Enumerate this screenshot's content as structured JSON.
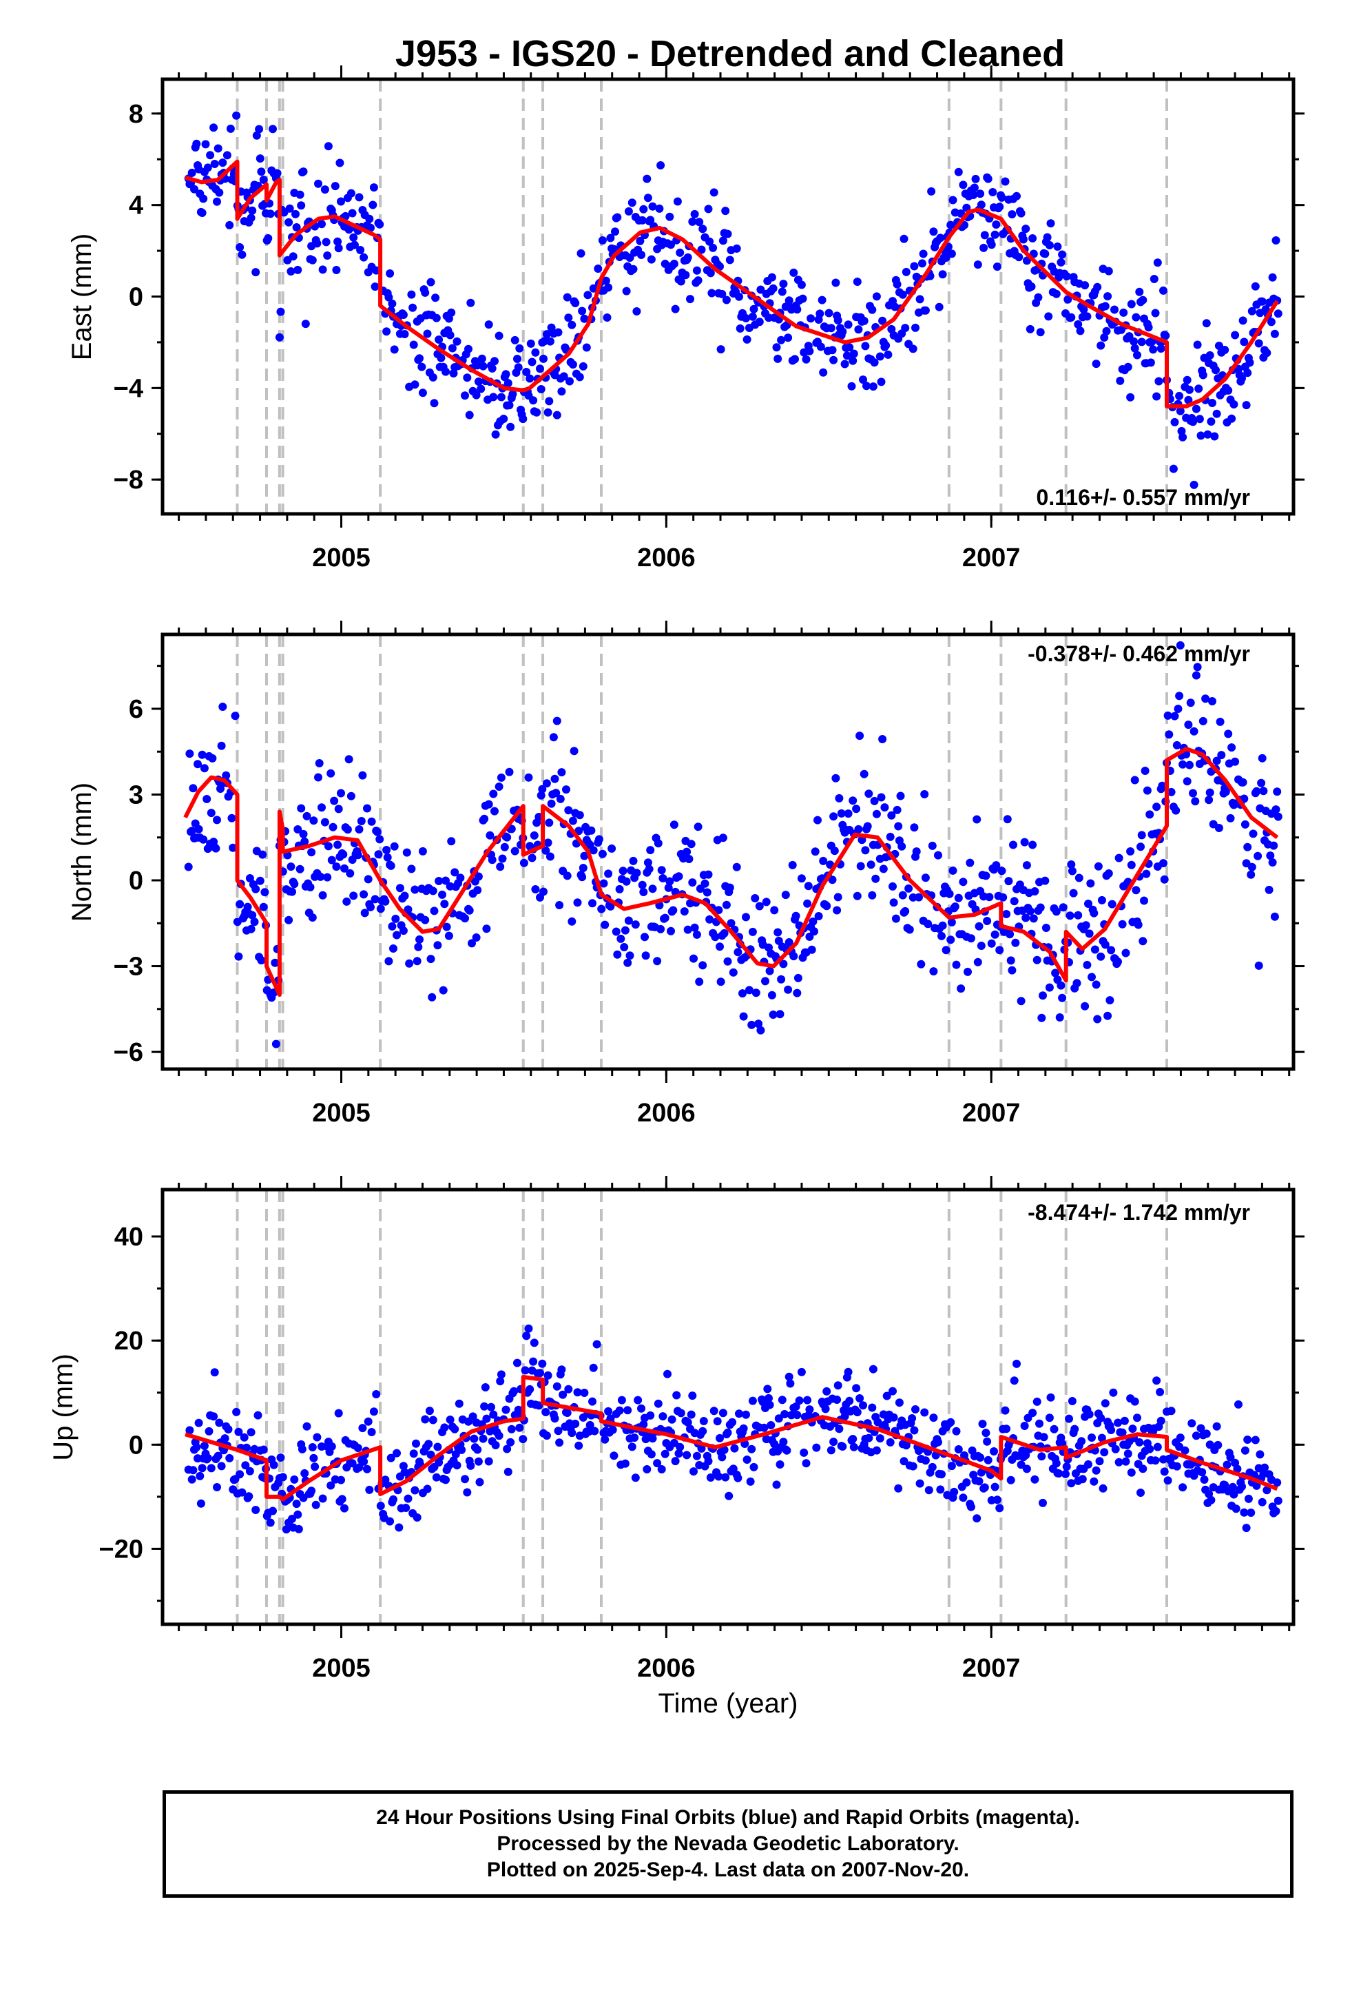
{
  "title": "J953 - IGS20 - Detrended and Cleaned",
  "xlabel": "Time (year)",
  "footer": {
    "line1": "24 Hour Positions Using Final Orbits (blue) and Rapid Orbits (magenta).",
    "line2": "Processed by the Nevada Geodetic Laboratory.",
    "line3": "Plotted on 2025-Sep-4. Last data on 2007-Nov-20."
  },
  "colors": {
    "points": "#0000ff",
    "model": "#ff0000",
    "events": "#c0c0c0",
    "frame": "#000000"
  },
  "chart_data": [
    {
      "type": "scatter",
      "ylabel": "East (mm)",
      "rate_text": "0.116+/- 0.557 mm/yr",
      "xlim": [
        2004.45,
        2007.93
      ],
      "ylim": [
        -9.5,
        9.5
      ],
      "xticks": [
        2005,
        2006,
        2007
      ],
      "yticks": [
        -8,
        -4,
        0,
        4,
        8
      ],
      "event_lines": [
        2004.68,
        2004.77,
        2004.81,
        2004.82,
        2005.12,
        2005.56,
        2005.62,
        2005.8,
        2006.87,
        2007.03,
        2007.23,
        2007.54
      ],
      "model": {
        "x": [
          2004.52,
          2004.57,
          2004.62,
          2004.68,
          2004.68,
          2004.72,
          2004.77,
          2004.77,
          2004.8,
          2004.81,
          2004.81,
          2004.86,
          2004.93,
          2004.98,
          2005.04,
          2005.1,
          2005.12,
          2005.12,
          2005.2,
          2005.3,
          2005.4,
          2005.5,
          2005.56,
          2005.58,
          2005.62,
          2005.7,
          2005.76,
          2005.8,
          2005.84,
          2005.92,
          2005.98,
          2006.05,
          2006.15,
          2006.25,
          2006.4,
          2006.55,
          2006.62,
          2006.7,
          2006.8,
          2006.87,
          2006.93,
          2006.96,
          2007.03,
          2007.1,
          2007.23,
          2007.3,
          2007.4,
          2007.54,
          2007.54,
          2007.6,
          2007.65,
          2007.72,
          2007.8,
          2007.88
        ],
        "y": [
          5.2,
          5.0,
          5.1,
          5.9,
          3.4,
          4.3,
          4.9,
          4.2,
          5.0,
          5.1,
          1.8,
          2.7,
          3.4,
          3.5,
          3.1,
          2.7,
          2.5,
          -0.4,
          -1.3,
          -2.3,
          -3.2,
          -4.0,
          -4.1,
          -4.0,
          -3.5,
          -2.5,
          -1.2,
          0.8,
          1.8,
          2.8,
          3.0,
          2.5,
          1.2,
          0.2,
          -1.3,
          -2.0,
          -1.8,
          -1.0,
          1.0,
          2.6,
          3.7,
          3.8,
          3.4,
          2.0,
          0.2,
          -0.4,
          -1.2,
          -2.0,
          -4.8,
          -4.8,
          -4.5,
          -3.6,
          -2.0,
          -0.2
        ]
      },
      "scatter_noise": 1.2
    },
    {
      "type": "scatter",
      "ylabel": "North (mm)",
      "rate_text": "-0.378+/- 0.462 mm/yr",
      "xlim": [
        2004.45,
        2007.93
      ],
      "ylim": [
        -6.6,
        8.6
      ],
      "xticks": [
        2005,
        2006,
        2007
      ],
      "yticks": [
        -6,
        -3,
        0,
        3,
        6
      ],
      "event_lines": [
        2004.68,
        2004.77,
        2004.81,
        2004.82,
        2005.12,
        2005.56,
        2005.62,
        2005.8,
        2006.87,
        2007.03,
        2007.23,
        2007.54
      ],
      "model": {
        "x": [
          2004.52,
          2004.56,
          2004.6,
          2004.64,
          2004.68,
          2004.68,
          2004.72,
          2004.77,
          2004.77,
          2004.81,
          2004.81,
          2004.82,
          2004.82,
          2004.9,
          2004.98,
          2005.05,
          2005.12,
          2005.18,
          2005.25,
          2005.3,
          2005.35,
          2005.45,
          2005.56,
          2005.56,
          2005.6,
          2005.62,
          2005.62,
          2005.7,
          2005.76,
          2005.8,
          2005.87,
          2005.95,
          2006.05,
          2006.12,
          2006.2,
          2006.28,
          2006.33,
          2006.4,
          2006.48,
          2006.58,
          2006.65,
          2006.75,
          2006.87,
          2006.95,
          2007.03,
          2007.03,
          2007.1,
          2007.18,
          2007.23,
          2007.23,
          2007.28,
          2007.35,
          2007.45,
          2007.54,
          2007.54,
          2007.6,
          2007.65,
          2007.72,
          2007.8,
          2007.88
        ],
        "y": [
          2.2,
          3.1,
          3.6,
          3.5,
          3.0,
          0.0,
          -0.6,
          -1.5,
          -3.0,
          -4.0,
          2.4,
          1.8,
          1.0,
          1.2,
          1.5,
          1.4,
          0.0,
          -1.0,
          -1.8,
          -1.7,
          -0.8,
          1.0,
          2.6,
          0.9,
          1.1,
          1.2,
          2.6,
          1.9,
          1.0,
          -0.5,
          -1.0,
          -0.8,
          -0.5,
          -0.8,
          -1.8,
          -2.9,
          -3.0,
          -2.2,
          -0.2,
          1.6,
          1.5,
          0.0,
          -1.3,
          -1.2,
          -0.8,
          -1.6,
          -1.8,
          -2.5,
          -3.5,
          -1.8,
          -2.4,
          -1.7,
          0.2,
          1.9,
          4.2,
          4.6,
          4.4,
          3.5,
          2.2,
          1.5
        ]
      },
      "scatter_noise": 1.3
    },
    {
      "type": "scatter",
      "ylabel": "Up (mm)",
      "rate_text": "-8.474+/- 1.742 mm/yr",
      "xlim": [
        2004.45,
        2007.93
      ],
      "ylim": [
        -34.5,
        49
      ],
      "xticks": [
        2005,
        2006,
        2007
      ],
      "yticks": [
        -20,
        0,
        20,
        40
      ],
      "event_lines": [
        2004.68,
        2004.77,
        2004.81,
        2004.82,
        2005.12,
        2005.56,
        2005.62,
        2005.8,
        2006.87,
        2007.03,
        2007.23,
        2007.54
      ],
      "model": {
        "x": [
          2004.52,
          2004.68,
          2004.77,
          2004.77,
          2004.81,
          2004.82,
          2004.9,
          2005.0,
          2005.12,
          2005.12,
          2005.2,
          2005.3,
          2005.4,
          2005.5,
          2005.56,
          2005.56,
          2005.62,
          2005.62,
          2005.8,
          2005.8,
          2006.0,
          2006.15,
          2006.3,
          2006.48,
          2006.65,
          2006.87,
          2007.0,
          2007.03,
          2007.03,
          2007.15,
          2007.23,
          2007.23,
          2007.35,
          2007.45,
          2007.54,
          2007.54,
          2007.65,
          2007.8,
          2007.88
        ],
        "y": [
          2.0,
          -1.0,
          -3.0,
          -10.0,
          -10.0,
          -10.5,
          -7.0,
          -3.0,
          -0.5,
          -9.5,
          -7.0,
          -2.0,
          2.5,
          4.5,
          5.0,
          13.0,
          12.5,
          8.0,
          6.0,
          4.5,
          2.0,
          -0.5,
          2.0,
          5.3,
          3.0,
          -2.0,
          -5.0,
          -6.5,
          1.5,
          -1.0,
          -0.5,
          -2.5,
          0.5,
          2.0,
          1.5,
          -1.0,
          -3.5,
          -6.5,
          -8.5
        ]
      },
      "scatter_noise": 4.8
    }
  ]
}
